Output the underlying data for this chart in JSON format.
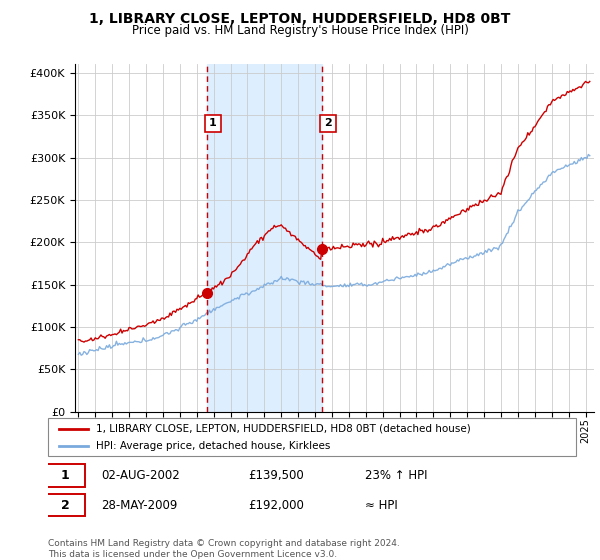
{
  "title": "1, LIBRARY CLOSE, LEPTON, HUDDERSFIELD, HD8 0BT",
  "subtitle": "Price paid vs. HM Land Registry's House Price Index (HPI)",
  "legend_line1": "1, LIBRARY CLOSE, LEPTON, HUDDERSFIELD, HD8 0BT (detached house)",
  "legend_line2": "HPI: Average price, detached house, Kirklees",
  "sale1_date": "02-AUG-2002",
  "sale1_price": "£139,500",
  "sale1_hpi": "23% ↑ HPI",
  "sale2_date": "28-MAY-2009",
  "sale2_price": "£192,000",
  "sale2_hpi": "≈ HPI",
  "footer": "Contains HM Land Registry data © Crown copyright and database right 2024.\nThis data is licensed under the Open Government Licence v3.0.",
  "red_color": "#cc0000",
  "blue_color": "#7aaadd",
  "vspan_color": "#ddeeff",
  "marker1_x": 2002.58,
  "marker1_y": 139500,
  "marker2_x": 2009.4,
  "marker2_y": 192000,
  "vline1_x": 2002.58,
  "vline2_x": 2009.4,
  "ylim": [
    0,
    410000
  ],
  "xlim": [
    1994.8,
    2025.5
  ]
}
